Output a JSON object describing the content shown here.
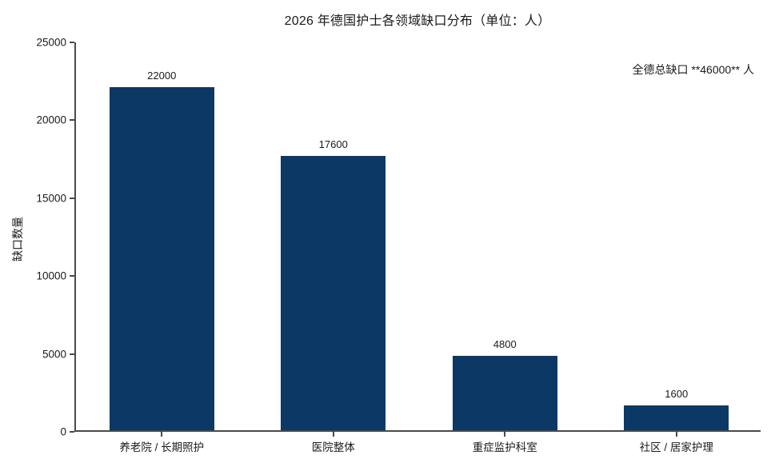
{
  "chart_data": {
    "type": "bar",
    "title": "2026 年德国护士各领域缺口分布（单位：人）",
    "ylabel": "缺口数量",
    "xlabel": "",
    "categories": [
      "养老院 / 长期照护",
      "医院整体",
      "重症监护科室",
      "社区 / 居家护理"
    ],
    "values": [
      22000,
      17600,
      4800,
      1600
    ],
    "value_labels": [
      "22000",
      "17600",
      "4800",
      "1600"
    ],
    "annotation": "全德总缺口 **46000** 人",
    "ylim": [
      0,
      25000
    ],
    "yticks": [
      0,
      5000,
      10000,
      15000,
      20000,
      25000
    ],
    "ytick_labels": [
      "0",
      "5000",
      "10000",
      "15000",
      "20000",
      "25000"
    ],
    "grid": false,
    "legend": null,
    "colors": {
      "bar": "#0c3866",
      "text": "#1a1a1a",
      "axis": "#4a4a4a",
      "background": "#ffffff"
    }
  }
}
